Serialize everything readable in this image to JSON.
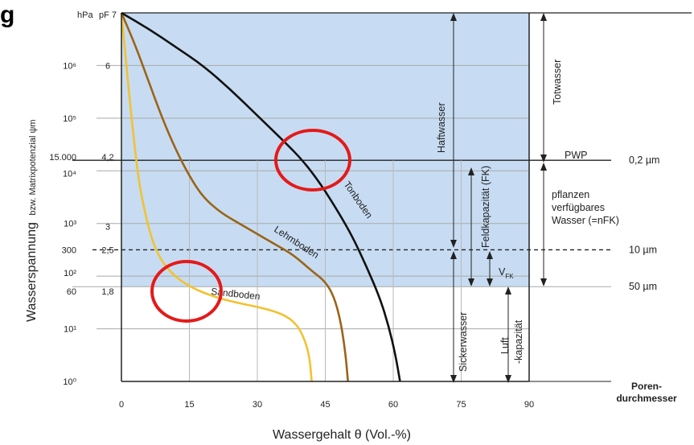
{
  "chart_data": {
    "type": "line",
    "title": "",
    "xlabel": "Wassergehalt θ (Vol.-%)",
    "ylabel_main": "Wasserspannung",
    "ylabel_sub": "bzw. Matrixpotenzial ψm",
    "xlim": [
      0,
      90
    ],
    "ylim": [
      0,
      7
    ],
    "x_ticks": [
      "0",
      "15",
      "30",
      "45",
      "60",
      "75",
      "90"
    ],
    "x_tick_values": [
      0,
      15,
      30,
      45,
      60,
      75,
      90
    ],
    "y_unit_left": "hPa",
    "y_unit_right": "pF 7",
    "hpa_ticks": [
      {
        "label": "10⁶",
        "pf": 6
      },
      {
        "label": "10⁵",
        "pf": 5
      },
      {
        "label": "15.000",
        "pf": 4.2
      },
      {
        "label": "10⁴",
        "pf": 4
      },
      {
        "label": "10³",
        "pf": 3
      },
      {
        "label": "300",
        "pf": 2.5
      },
      {
        "label": "10²",
        "pf": 2
      },
      {
        "label": "60",
        "pf": 1.8
      },
      {
        "label": "10¹",
        "pf": 1
      },
      {
        "label": "10⁰",
        "pf": 0
      }
    ],
    "pf_ticks": [
      {
        "label": "6",
        "pf": 6
      },
      {
        "label": "4,2",
        "pf": 4.2
      },
      {
        "label": "3",
        "pf": 3
      },
      {
        "label": "2,5",
        "pf": 2.5
      },
      {
        "label": "1,8",
        "pf": 1.8
      }
    ],
    "series": [
      {
        "name": "Sandboden",
        "color": "#f2c230",
        "points": [
          [
            0,
            7
          ],
          [
            1,
            6.1
          ],
          [
            2,
            5.2
          ],
          [
            3,
            4.4
          ],
          [
            4,
            3.7
          ],
          [
            6,
            2.9
          ],
          [
            8,
            2.4
          ],
          [
            11,
            2.05
          ],
          [
            15,
            1.8
          ],
          [
            20,
            1.62
          ],
          [
            25,
            1.5
          ],
          [
            30,
            1.42
          ],
          [
            35,
            1.3
          ],
          [
            38,
            1.15
          ],
          [
            40,
            0.9
          ],
          [
            41.5,
            0.5
          ],
          [
            42,
            0
          ]
        ]
      },
      {
        "name": "Lehmboden",
        "color": "#9a6418",
        "points": [
          [
            0,
            7
          ],
          [
            3,
            6.4
          ],
          [
            6,
            5.7
          ],
          [
            9,
            5.0
          ],
          [
            12,
            4.4
          ],
          [
            15,
            3.9
          ],
          [
            18,
            3.5
          ],
          [
            22,
            3.2
          ],
          [
            26,
            3.0
          ],
          [
            30,
            2.8
          ],
          [
            34,
            2.6
          ],
          [
            38,
            2.4
          ],
          [
            42,
            2.1
          ],
          [
            45,
            1.9
          ],
          [
            47,
            1.6
          ],
          [
            48.5,
            1.1
          ],
          [
            49.5,
            0.5
          ],
          [
            50,
            0
          ]
        ]
      },
      {
        "name": "Tonboden",
        "color": "#111111",
        "points": [
          [
            0,
            7
          ],
          [
            6,
            6.7
          ],
          [
            12,
            6.35
          ],
          [
            18,
            6.0
          ],
          [
            24,
            5.55
          ],
          [
            30,
            5.05
          ],
          [
            36,
            4.55
          ],
          [
            40,
            4.2
          ],
          [
            44,
            3.75
          ],
          [
            48,
            3.2
          ],
          [
            51,
            2.75
          ],
          [
            54,
            2.2
          ],
          [
            57,
            1.6
          ],
          [
            59,
            1.05
          ],
          [
            60.5,
            0.5
          ],
          [
            61.5,
            0
          ]
        ]
      }
    ],
    "zones": {
      "totwasser": "Totwasser",
      "haftwasser": "Haftwasser",
      "sickerwasser": "Sickerwasser",
      "feldkapazitaet": "Feldkapazität (FK)",
      "pwp": "PWP",
      "nfk": [
        "pflanzen",
        "verfügbares",
        "Wasser (=nFK)"
      ],
      "vfk": "V",
      "vfk_sub": "FK",
      "luft_1": "Luft",
      "luft_2": "-kapazität"
    },
    "pore_labels": [
      {
        "label": "0,2 µm",
        "pf": 4.2
      },
      {
        "label": "10 µm",
        "pf": 2.5
      },
      {
        "label": "50 µm",
        "pf": 1.8
      }
    ],
    "pore_title": [
      "Poren-",
      "durchmesser"
    ],
    "partial_heading": "g"
  }
}
